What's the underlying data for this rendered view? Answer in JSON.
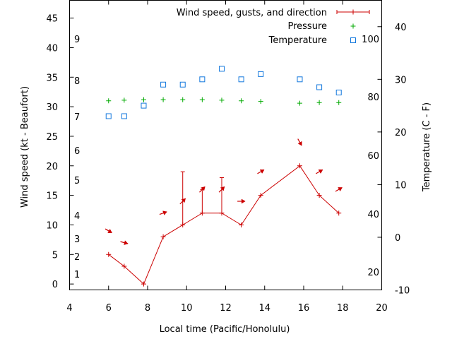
{
  "chart_data": {
    "type": "line",
    "xlabel": "Local time (Pacific/Honolulu)",
    "ylabel": "Wind speed (kt - Beaufort)",
    "y2label": "Temperature (C - F)",
    "xlim": [
      4,
      20
    ],
    "ylim": [
      -1,
      48
    ],
    "y2lim": [
      -10,
      45
    ],
    "x_ticks": [
      "4",
      "6",
      "8",
      "10",
      "12",
      "14",
      "16",
      "18",
      "20"
    ],
    "y_ticks": [
      "0",
      "5",
      "10",
      "15",
      "20",
      "25",
      "30",
      "35",
      "40",
      "45"
    ],
    "y2_ticks": [
      "-10",
      "0",
      "10",
      "20",
      "30",
      "40"
    ],
    "beaufort_labels": [
      "1",
      "2",
      "3",
      "4",
      "5",
      "6",
      "7",
      "8",
      "9"
    ],
    "fahrenheit_labels": [
      "20",
      "40",
      "60",
      "80",
      "100"
    ],
    "legend_position": "top-right",
    "colors": {
      "wind": "#cc0000",
      "pressure": "#00aa00",
      "temperature": "#1177dd",
      "axis": "#000000"
    },
    "series": [
      {
        "name": "Wind speed, gusts, and direction",
        "kind": "line-errorbar",
        "x": [
          6,
          6.8,
          7.8,
          8.8,
          9.8,
          10.8,
          11.8,
          12.8,
          13.8,
          15.8,
          16.8,
          17.8
        ],
        "values": [
          5,
          3,
          0,
          8,
          10,
          12,
          12,
          10,
          15,
          20,
          15,
          12
        ],
        "gusts": [
          5,
          3,
          0,
          8,
          19,
          16,
          18,
          10,
          15,
          20,
          15,
          12
        ],
        "direction_deg": [
          300,
          285,
          null,
          250,
          225,
          225,
          225,
          270,
          240,
          330,
          240,
          240
        ]
      },
      {
        "name": "Pressure",
        "kind": "points",
        "x": [
          6,
          6.8,
          7.8,
          8.8,
          9.8,
          10.8,
          11.8,
          12.8,
          13.8,
          15.8,
          16.8,
          17.8
        ],
        "values": [
          31,
          31.1,
          31.2,
          31.2,
          31.2,
          31.2,
          31.1,
          31,
          30.9,
          30.6,
          30.7,
          30.7
        ]
      },
      {
        "name": "Temperature",
        "kind": "points",
        "axis": "y2",
        "x": [
          6,
          6.8,
          7.8,
          8.8,
          9.8,
          10.8,
          11.8,
          12.8,
          13.8,
          15.8,
          16.8,
          17.8
        ],
        "values": [
          23,
          23,
          25,
          29,
          29,
          30,
          32,
          30,
          31,
          30,
          28.5,
          27.5
        ]
      }
    ]
  }
}
